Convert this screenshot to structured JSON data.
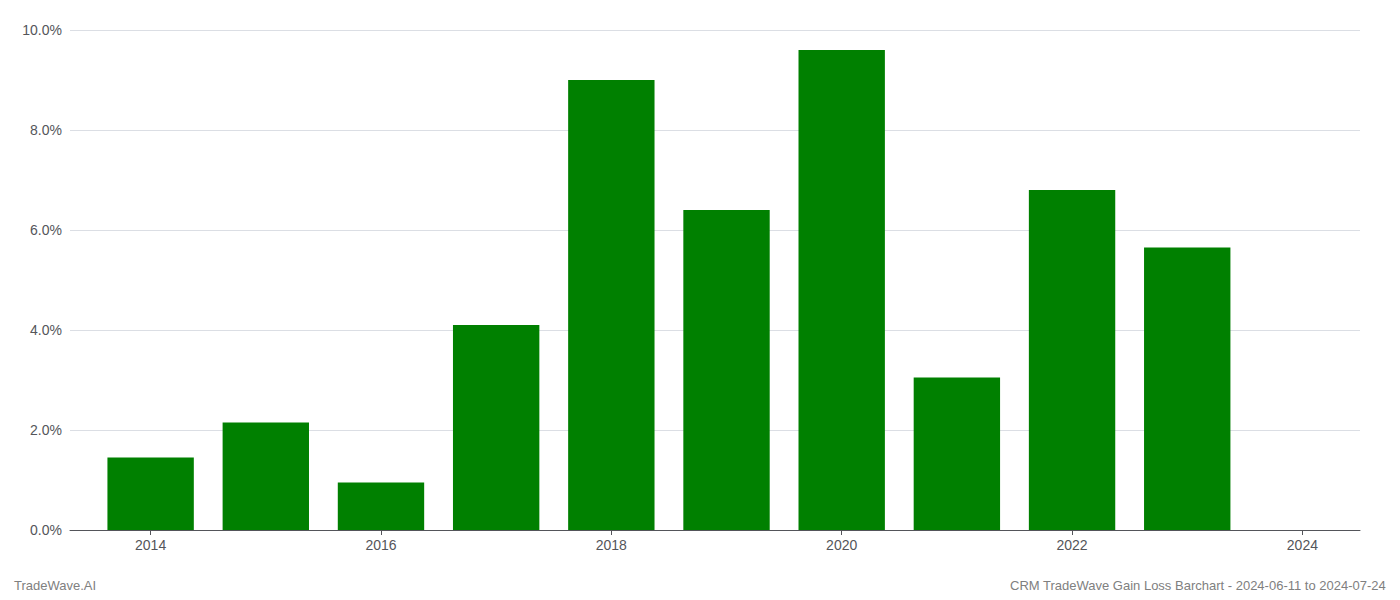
{
  "chart_data": {
    "type": "bar",
    "x": [
      2014,
      2015,
      2016,
      2017,
      2018,
      2019,
      2020,
      2021,
      2022,
      2023
    ],
    "values": [
      0.0145,
      0.0215,
      0.0095,
      0.041,
      0.09,
      0.064,
      0.096,
      0.0305,
      0.068,
      0.0565
    ],
    "color": "#008000",
    "xlim": [
      2013.3,
      2024.5
    ],
    "xticks": [
      2014,
      2016,
      2018,
      2020,
      2022,
      2024
    ],
    "ylim": [
      0,
      0.1
    ],
    "yticks": [
      {
        "value": 0.0,
        "label": "0.0%"
      },
      {
        "value": 0.02,
        "label": "2.0%"
      },
      {
        "value": 0.04,
        "label": "4.0%"
      },
      {
        "value": 0.06,
        "label": "6.0%"
      },
      {
        "value": 0.08,
        "label": "8.0%"
      },
      {
        "value": 0.1,
        "label": "10.0%"
      }
    ],
    "grid": true,
    "annotations": [
      "TradeWave.AI",
      "CRM TradeWave Gain Loss Barchart - 2024-06-11 to 2024-07-24"
    ]
  }
}
